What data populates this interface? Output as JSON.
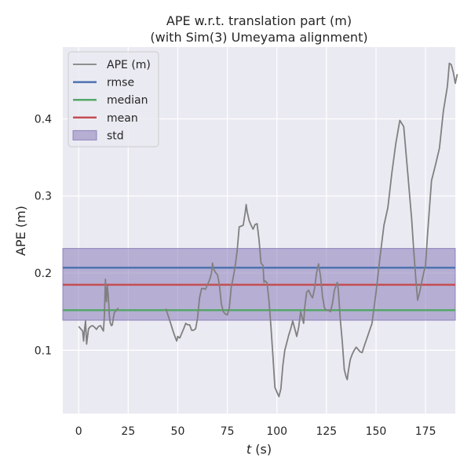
{
  "chart_data": {
    "type": "line",
    "title": "APE w.r.t. translation part (m)",
    "subtitle": "(with Sim(3) Umeyama alignment)",
    "xlabel_italic": "t",
    "xlabel_unit": " (s)",
    "ylabel": "APE (m)",
    "xlim": [
      -8,
      190
    ],
    "ylim": [
      0.018,
      0.493
    ],
    "xticks": [
      0,
      25,
      50,
      75,
      100,
      125,
      150,
      175
    ],
    "yticks": [
      0.1,
      0.2,
      0.3,
      0.4
    ],
    "xtick_labels": [
      "0",
      "25",
      "50",
      "75",
      "100",
      "125",
      "150",
      "175"
    ],
    "ytick_labels": [
      "0.1",
      "0.2",
      "0.3",
      "0.4"
    ],
    "grid": true,
    "legend_position": "top-left",
    "legend": [
      {
        "key": "ape",
        "label": "APE (m)",
        "kind": "line",
        "color": "#808080"
      },
      {
        "key": "rmse",
        "label": "rmse",
        "kind": "line",
        "color": "#4c72b0"
      },
      {
        "key": "median",
        "label": "median",
        "kind": "line",
        "color": "#55a868"
      },
      {
        "key": "mean",
        "label": "mean",
        "kind": "line",
        "color": "#c44e52"
      },
      {
        "key": "std",
        "label": "std",
        "kind": "patch",
        "color": "#8172b3"
      }
    ],
    "stats": {
      "rmse": 0.207,
      "median": 0.152,
      "mean": 0.185,
      "std_band": [
        0.139,
        0.232
      ]
    },
    "series": [
      {
        "name": "APE (m)",
        "color": "#808080",
        "segments": [
          [
            [
              0,
              0.131
            ],
            [
              1,
              0.128
            ],
            [
              2,
              0.125
            ],
            [
              2.5,
              0.112
            ],
            [
              3,
              0.128
            ],
            [
              3.5,
              0.138
            ],
            [
              4,
              0.108
            ],
            [
              5,
              0.128
            ],
            [
              6,
              0.131
            ],
            [
              7,
              0.132
            ],
            [
              8,
              0.13
            ],
            [
              9,
              0.127
            ],
            [
              10,
              0.131
            ],
            [
              11,
              0.132
            ],
            [
              12,
              0.127
            ],
            [
              12.5,
              0.125
            ],
            [
              13,
              0.145
            ],
            [
              13.5,
              0.192
            ],
            [
              14,
              0.163
            ],
            [
              14.5,
              0.183
            ],
            [
              15,
              0.168
            ],
            [
              15.5,
              0.145
            ],
            [
              16,
              0.135
            ],
            [
              16.5,
              0.132
            ],
            [
              17,
              0.133
            ],
            [
              17.5,
              0.142
            ],
            [
              18,
              0.149
            ],
            [
              19,
              0.152
            ],
            [
              20,
              0.155
            ]
          ],
          [
            [
              44,
              0.154
            ],
            [
              46,
              0.138
            ],
            [
              48,
              0.122
            ],
            [
              49,
              0.115
            ],
            [
              49.5,
              0.112
            ],
            [
              50,
              0.118
            ],
            [
              51,
              0.116
            ],
            [
              52,
              0.122
            ],
            [
              53,
              0.128
            ],
            [
              54,
              0.135
            ],
            [
              55,
              0.133
            ],
            [
              56,
              0.133
            ],
            [
              57,
              0.126
            ],
            [
              58,
              0.126
            ],
            [
              59,
              0.128
            ],
            [
              60,
              0.142
            ],
            [
              61,
              0.168
            ],
            [
              62,
              0.18
            ],
            [
              63,
              0.18
            ],
            [
              64,
              0.179
            ],
            [
              65,
              0.185
            ],
            [
              66,
              0.191
            ],
            [
              67,
              0.2
            ],
            [
              67.5,
              0.213
            ],
            [
              68,
              0.206
            ],
            [
              69,
              0.201
            ],
            [
              70,
              0.198
            ],
            [
              71,
              0.185
            ],
            [
              72,
              0.16
            ],
            [
              73,
              0.15
            ],
            [
              74,
              0.147
            ],
            [
              75,
              0.146
            ],
            [
              76,
              0.155
            ],
            [
              77,
              0.182
            ],
            [
              78,
              0.195
            ],
            [
              79,
              0.21
            ],
            [
              80,
              0.23
            ],
            [
              81,
              0.26
            ],
            [
              82,
              0.261
            ],
            [
              83,
              0.262
            ],
            [
              84,
              0.278
            ],
            [
              84.5,
              0.289
            ],
            [
              85,
              0.28
            ],
            [
              86,
              0.268
            ],
            [
              87,
              0.262
            ],
            [
              88,
              0.257
            ],
            [
              89,
              0.263
            ],
            [
              90,
              0.264
            ],
            [
              91,
              0.243
            ],
            [
              92,
              0.213
            ],
            [
              93,
              0.21
            ],
            [
              93.5,
              0.188
            ],
            [
              94,
              0.19
            ],
            [
              95,
              0.188
            ],
            [
              96,
              0.165
            ],
            [
              97,
              0.13
            ],
            [
              98,
              0.092
            ],
            [
              99,
              0.052
            ],
            [
              100,
              0.046
            ],
            [
              101,
              0.04
            ],
            [
              102,
              0.05
            ],
            [
              103,
              0.08
            ],
            [
              104,
              0.1
            ],
            [
              105,
              0.11
            ],
            [
              106,
              0.12
            ],
            [
              107,
              0.128
            ],
            [
              108,
              0.138
            ],
            [
              109,
              0.128
            ],
            [
              110,
              0.118
            ],
            [
              111,
              0.13
            ],
            [
              112,
              0.15
            ],
            [
              113,
              0.14
            ],
            [
              113.5,
              0.135
            ],
            [
              114,
              0.155
            ],
            [
              115,
              0.175
            ],
            [
              116,
              0.178
            ],
            [
              117,
              0.172
            ],
            [
              118,
              0.168
            ],
            [
              119,
              0.18
            ],
            [
              120,
              0.2
            ],
            [
              121,
              0.212
            ],
            [
              122,
              0.196
            ],
            [
              123,
              0.17
            ],
            [
              124,
              0.155
            ],
            [
              125,
              0.152
            ],
            [
              126,
              0.152
            ],
            [
              127,
              0.15
            ],
            [
              128,
              0.16
            ],
            [
              129,
              0.178
            ],
            [
              130,
              0.185
            ],
            [
              130.5,
              0.188
            ],
            [
              131,
              0.178
            ],
            [
              132,
              0.14
            ],
            [
              133,
              0.11
            ],
            [
              134,
              0.075
            ],
            [
              135,
              0.065
            ],
            [
              135.5,
              0.062
            ],
            [
              136,
              0.072
            ],
            [
              137,
              0.088
            ],
            [
              138,
              0.095
            ],
            [
              139,
              0.1
            ],
            [
              140,
              0.104
            ],
            [
              141,
              0.101
            ],
            [
              142,
              0.098
            ],
            [
              143,
              0.097
            ],
            [
              144,
              0.105
            ],
            [
              146,
              0.12
            ],
            [
              148,
              0.135
            ],
            [
              150,
              0.175
            ],
            [
              152,
              0.22
            ],
            [
              154,
              0.262
            ],
            [
              156,
              0.285
            ],
            [
              158,
              0.33
            ],
            [
              160,
              0.368
            ],
            [
              162,
              0.398
            ],
            [
              164,
              0.39
            ],
            [
              166,
              0.33
            ],
            [
              168,
              0.27
            ],
            [
              169,
              0.23
            ],
            [
              170,
              0.195
            ],
            [
              171,
              0.165
            ],
            [
              172,
              0.175
            ],
            [
              174,
              0.2
            ],
            [
              175,
              0.21
            ],
            [
              176,
              0.25
            ],
            [
              178,
              0.32
            ],
            [
              180,
              0.34
            ],
            [
              182,
              0.362
            ],
            [
              184,
              0.41
            ],
            [
              186,
              0.442
            ],
            [
              187,
              0.472
            ],
            [
              188,
              0.47
            ],
            [
              189,
              0.46
            ],
            [
              190,
              0.446
            ],
            [
              191,
              0.458
            ]
          ]
        ]
      }
    ]
  }
}
